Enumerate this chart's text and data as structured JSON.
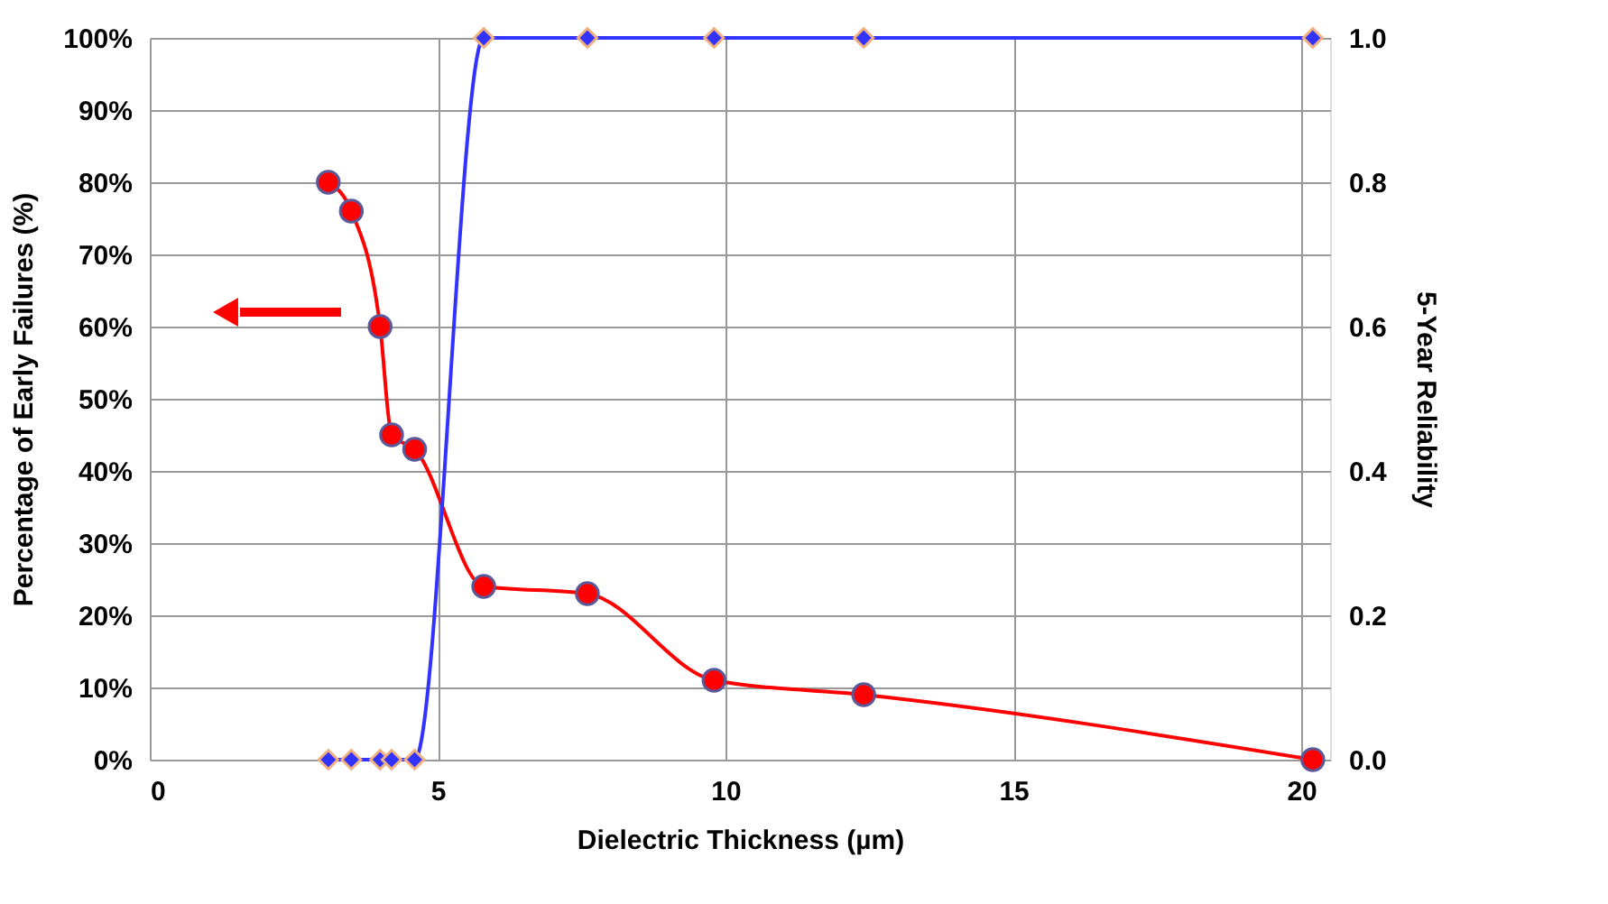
{
  "chart_data": {
    "type": "line",
    "xlabel": "Dielectric Thickness (µm)",
    "ylabel": "Percentage of Early Failures (%)",
    "y2label": "5-Year Reliability",
    "xlim": [
      0,
      20.5
    ],
    "xticks": [
      0,
      5,
      10,
      15,
      20
    ],
    "ylim": [
      0,
      100
    ],
    "yticks": [
      {
        "value": 0,
        "label": "0%"
      },
      {
        "value": 10,
        "label": "10%"
      },
      {
        "value": 20,
        "label": "20%"
      },
      {
        "value": 30,
        "label": "30%"
      },
      {
        "value": 40,
        "label": "40%"
      },
      {
        "value": 50,
        "label": "50%"
      },
      {
        "value": 60,
        "label": "60%"
      },
      {
        "value": 70,
        "label": "70%"
      },
      {
        "value": 80,
        "label": "80%"
      },
      {
        "value": 90,
        "label": "90%"
      },
      {
        "value": 100,
        "label": "100%"
      }
    ],
    "y2lim": [
      0,
      1
    ],
    "y2ticks": [
      {
        "value": 0,
        "label": "0.0"
      },
      {
        "value": 0.2,
        "label": "0.2"
      },
      {
        "value": 0.4,
        "label": "0.4"
      },
      {
        "value": 0.6,
        "label": "0.6"
      },
      {
        "value": 0.8,
        "label": "0.8"
      },
      {
        "value": 1,
        "label": "1.0"
      }
    ],
    "grid": true,
    "series": [
      {
        "color": "#ff0000",
        "marker": "circle",
        "x": [
          3.1,
          3.5,
          4.0,
          4.2,
          4.6,
          5.8,
          7.6,
          9.8,
          12.4,
          20.2
        ],
        "values": [
          80,
          76,
          60,
          45,
          43,
          24,
          23,
          11,
          9,
          0
        ]
      },
      {
        "color": "#3333ff",
        "marker": "diamond",
        "axis": "y2",
        "x": [
          3.1,
          3.5,
          4.0,
          4.2,
          4.6,
          5.8,
          7.6,
          9.8,
          12.4,
          20.2
        ],
        "values": [
          0,
          0,
          0,
          0,
          0,
          1,
          1,
          1,
          1,
          1
        ]
      }
    ]
  }
}
